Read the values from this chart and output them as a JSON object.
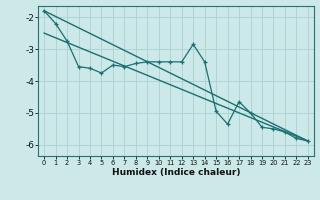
{
  "title": "",
  "xlabel": "Humidex (Indice chaleur)",
  "ylabel": "",
  "bg_color": "#cce8e8",
  "line_color": "#1a7070",
  "grid_color": "#aed4d4",
  "xlim": [
    -0.5,
    23.5
  ],
  "ylim": [
    -6.35,
    -1.65
  ],
  "yticks": [
    -6,
    -5,
    -4,
    -3,
    -2
  ],
  "xticks": [
    0,
    1,
    2,
    3,
    4,
    5,
    6,
    7,
    8,
    9,
    10,
    11,
    12,
    13,
    14,
    15,
    16,
    17,
    18,
    19,
    20,
    21,
    22,
    23
  ],
  "line1_x": [
    0,
    1,
    2,
    3,
    4,
    5,
    6,
    7,
    8,
    9,
    10,
    11,
    12,
    13,
    14,
    15,
    16,
    17,
    18,
    19,
    20,
    21,
    22,
    23
  ],
  "line1_y": [
    -1.8,
    -2.2,
    -2.75,
    -3.55,
    -3.6,
    -3.75,
    -3.5,
    -3.55,
    -3.45,
    -3.4,
    -3.4,
    -3.4,
    -3.4,
    -2.85,
    -3.4,
    -4.95,
    -5.35,
    -4.65,
    -5.0,
    -5.45,
    -5.5,
    -5.6,
    -5.8,
    -5.88
  ],
  "line2_x": [
    0,
    23
  ],
  "line2_y": [
    -1.8,
    -5.88
  ],
  "line3_x": [
    0,
    23
  ],
  "line3_y": [
    -2.5,
    -5.88
  ]
}
